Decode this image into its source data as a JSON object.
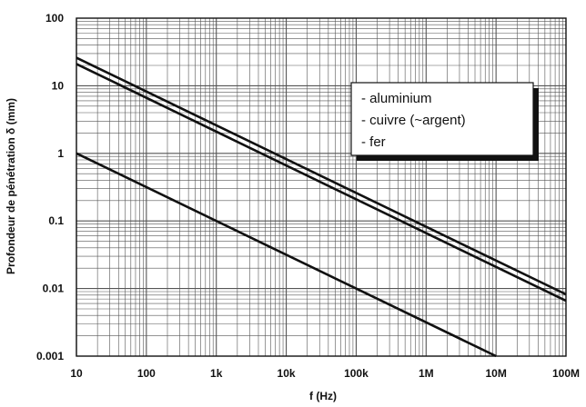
{
  "chart_data": {
    "type": "line",
    "title": "",
    "xlabel": "f (Hz)",
    "ylabel": "Profondeur de pénétration δ (mm)",
    "x_scale": "log",
    "y_scale": "log",
    "xlim": [
      10,
      100000000
    ],
    "ylim": [
      0.001,
      100
    ],
    "grid": true,
    "legend_position": "top-right",
    "x_ticks": [
      {
        "value": 10,
        "label": "10"
      },
      {
        "value": 100,
        "label": "100"
      },
      {
        "value": 1000,
        "label": "1k"
      },
      {
        "value": 10000,
        "label": "10k"
      },
      {
        "value": 100000,
        "label": "100k"
      },
      {
        "value": 1000000,
        "label": "1M"
      },
      {
        "value": 10000000,
        "label": "10M"
      },
      {
        "value": 100000000,
        "label": "100M"
      }
    ],
    "y_ticks": [
      {
        "value": 0.001,
        "label": "0.001"
      },
      {
        "value": 0.01,
        "label": "0.01"
      },
      {
        "value": 0.1,
        "label": "0.1"
      },
      {
        "value": 1,
        "label": "1"
      },
      {
        "value": 10,
        "label": "10"
      },
      {
        "value": 100,
        "label": "100"
      }
    ],
    "legend": [
      "- aluminium",
      "- cuivre (~argent)",
      "- fer"
    ],
    "series": [
      {
        "name": "aluminium",
        "x": [
          10,
          100000000
        ],
        "y": [
          26,
          0.0082
        ]
      },
      {
        "name": "cuivre (~argent)",
        "x": [
          10,
          100000000
        ],
        "y": [
          21,
          0.0066
        ]
      },
      {
        "name": "fer",
        "x": [
          10,
          10000000
        ],
        "y": [
          1.0,
          0.001
        ]
      }
    ],
    "colors": {
      "line": "#111111",
      "grid": "#555555",
      "background": "#ffffff"
    }
  }
}
